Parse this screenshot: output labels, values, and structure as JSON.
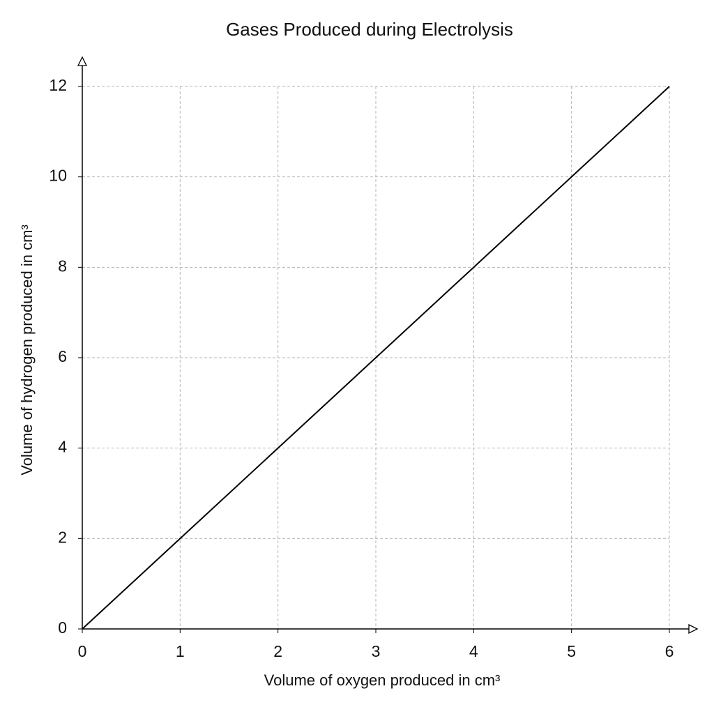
{
  "chart_data": {
    "type": "line",
    "title": "Gases Produced during Electrolysis",
    "xlabel": "Volume of oxygen produced in cm³",
    "ylabel": "Volume of hydrogen produced in cm³",
    "x": [
      0,
      1,
      2,
      3,
      4,
      5,
      6
    ],
    "values": [
      0,
      2,
      4,
      6,
      8,
      10,
      12
    ],
    "color": "#000000",
    "xlim": [
      0,
      6
    ],
    "ylim": [
      0,
      12
    ],
    "xticks": [
      0,
      1,
      2,
      3,
      4,
      5,
      6
    ],
    "yticks": [
      0,
      2,
      4,
      6,
      8,
      10,
      12
    ],
    "grid": true
  }
}
